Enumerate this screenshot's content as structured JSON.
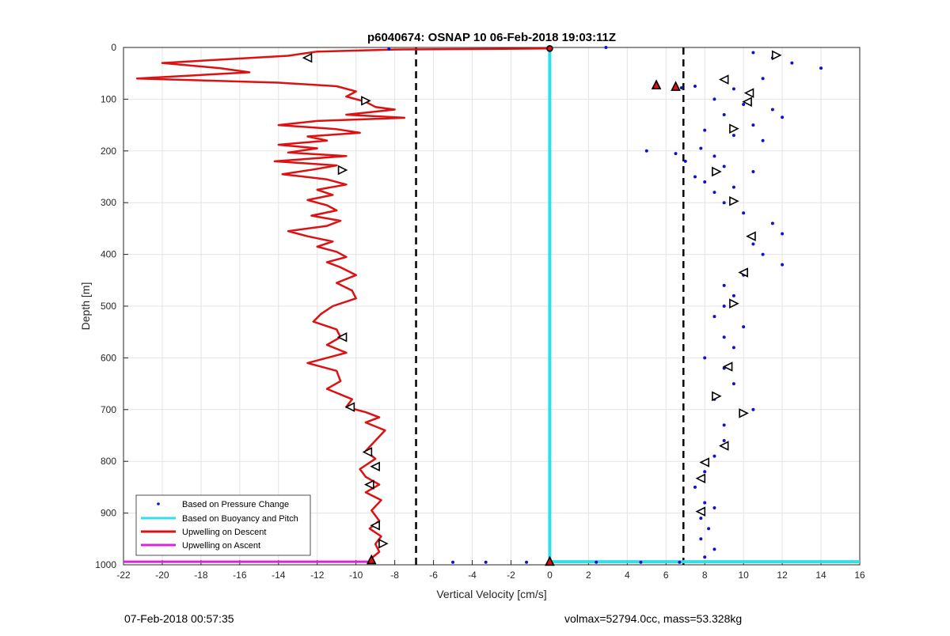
{
  "footer": {
    "left": "07-Feb-2018 00:57:35",
    "right": "volmax=52794.0cc, mass=53.328kg"
  },
  "colors": {
    "descent": "#dd1111",
    "buoyancy": "#33dfe6",
    "pressure": "#1010d0",
    "ascent": "#dd22dd",
    "threshold": "#000000",
    "grid": "#e3e3e3"
  },
  "chart_data": {
    "type": "scatter",
    "title": "p6040674: OSNAP 10 06-Feb-2018 19:03:11Z",
    "xlabel": "Vertical Velocity [cm/s]",
    "ylabel": "Depth [m]",
    "xlim": [
      -22,
      16
    ],
    "ylim": [
      0,
      1000
    ],
    "y_reversed": true,
    "grid": true,
    "legend_placement": "bottom-left",
    "xticks": [
      -22,
      -20,
      -18,
      -16,
      -14,
      -12,
      -10,
      -8,
      -6,
      -4,
      -2,
      0,
      2,
      4,
      6,
      8,
      10,
      12,
      14,
      16
    ],
    "yticks": [
      0,
      100,
      200,
      300,
      400,
      500,
      600,
      700,
      800,
      900,
      1000
    ],
    "thresholds": [
      -6.9,
      6.9
    ],
    "legend": [
      "Based on Pressure Change",
      "Based on Buoyancy and Pitch",
      "Upwelling on Descent",
      "Upwelling on Ascent"
    ],
    "series": [
      {
        "name": "Based on Pressure Change",
        "kind": "points",
        "points": [
          [
            2.9,
            0
          ],
          [
            10.5,
            10
          ],
          [
            11.5,
            20
          ],
          [
            12.5,
            30
          ],
          [
            14.0,
            40
          ],
          [
            11.0,
            60
          ],
          [
            9.5,
            80
          ],
          [
            7.5,
            75
          ],
          [
            6.8,
            78
          ],
          [
            8.5,
            100
          ],
          [
            10.0,
            110
          ],
          [
            11.5,
            120
          ],
          [
            9.0,
            130
          ],
          [
            12.0,
            135
          ],
          [
            10.5,
            150
          ],
          [
            8.0,
            160
          ],
          [
            9.5,
            170
          ],
          [
            11.0,
            180
          ],
          [
            7.8,
            195
          ],
          [
            5.0,
            200
          ],
          [
            6.5,
            205
          ],
          [
            8.5,
            210
          ],
          [
            7.0,
            220
          ],
          [
            9.0,
            230
          ],
          [
            10.5,
            240
          ],
          [
            7.5,
            250
          ],
          [
            8.0,
            260
          ],
          [
            9.5,
            270
          ],
          [
            8.5,
            280
          ],
          [
            9.0,
            300
          ],
          [
            10.0,
            320
          ],
          [
            11.5,
            340
          ],
          [
            12.0,
            360
          ],
          [
            10.5,
            380
          ],
          [
            11.0,
            400
          ],
          [
            12.0,
            420
          ],
          [
            10.0,
            440
          ],
          [
            9.0,
            460
          ],
          [
            9.5,
            480
          ],
          [
            9.0,
            500
          ],
          [
            8.5,
            520
          ],
          [
            10.0,
            540
          ],
          [
            9.0,
            560
          ],
          [
            9.5,
            580
          ],
          [
            8.0,
            600
          ],
          [
            9.0,
            620
          ],
          [
            9.5,
            650
          ],
          [
            8.5,
            680
          ],
          [
            10.5,
            700
          ],
          [
            9.0,
            730
          ],
          [
            9.0,
            760
          ],
          [
            8.5,
            790
          ],
          [
            8.0,
            820
          ],
          [
            7.5,
            850
          ],
          [
            8.0,
            880
          ],
          [
            8.5,
            890
          ],
          [
            7.8,
            910
          ],
          [
            8.2,
            930
          ],
          [
            7.8,
            950
          ],
          [
            8.5,
            970
          ],
          [
            8.0,
            985
          ],
          [
            -8.3,
            3
          ],
          [
            2.4,
            995
          ],
          [
            4.7,
            995
          ],
          [
            6.7,
            995
          ],
          [
            -3.3,
            995
          ],
          [
            -5.0,
            995
          ],
          [
            -1.2,
            995
          ]
        ]
      },
      {
        "name": "Based on Buoyancy and Pitch",
        "kind": "line",
        "points": [
          [
            0,
            0
          ],
          [
            0,
            994
          ],
          [
            16,
            994
          ]
        ]
      },
      {
        "name": "Upwelling on Descent",
        "kind": "line",
        "points": [
          [
            0,
            2
          ],
          [
            -8,
            4
          ],
          [
            -12,
            8
          ],
          [
            -13.5,
            16
          ],
          [
            -20,
            30
          ],
          [
            -17,
            40
          ],
          [
            -15.5,
            48
          ],
          [
            -21.3,
            60
          ],
          [
            -14,
            68
          ],
          [
            -11,
            75
          ],
          [
            -10,
            85
          ],
          [
            -10.5,
            95
          ],
          [
            -9.5,
            105
          ],
          [
            -9.0,
            115
          ],
          [
            -8.0,
            120
          ],
          [
            -10.5,
            130
          ],
          [
            -7.5,
            136
          ],
          [
            -12,
            142
          ],
          [
            -14,
            150
          ],
          [
            -11,
            158
          ],
          [
            -9.8,
            165
          ],
          [
            -12.5,
            172
          ],
          [
            -11.5,
            180
          ],
          [
            -14,
            188
          ],
          [
            -12,
            195
          ],
          [
            -13.5,
            203
          ],
          [
            -10.5,
            210
          ],
          [
            -14.2,
            220
          ],
          [
            -11.0,
            228
          ],
          [
            -12.2,
            236
          ],
          [
            -13.8,
            245
          ],
          [
            -11.5,
            255
          ],
          [
            -10.5,
            265
          ],
          [
            -12.0,
            275
          ],
          [
            -11.2,
            285
          ],
          [
            -12.5,
            295
          ],
          [
            -11.5,
            305
          ],
          [
            -11.0,
            315
          ],
          [
            -12.3,
            325
          ],
          [
            -10.8,
            335
          ],
          [
            -11.5,
            345
          ],
          [
            -13.5,
            355
          ],
          [
            -12.5,
            365
          ],
          [
            -11.2,
            375
          ],
          [
            -12.0,
            385
          ],
          [
            -11.0,
            395
          ],
          [
            -10.5,
            405
          ],
          [
            -11.5,
            415
          ],
          [
            -10.8,
            425
          ],
          [
            -10.0,
            440
          ],
          [
            -11.0,
            455
          ],
          [
            -10.2,
            470
          ],
          [
            -10.0,
            485
          ],
          [
            -11.2,
            500
          ],
          [
            -11.8,
            515
          ],
          [
            -12.2,
            530
          ],
          [
            -11.0,
            545
          ],
          [
            -10.8,
            560
          ],
          [
            -11.5,
            575
          ],
          [
            -10.5,
            590
          ],
          [
            -12.5,
            610
          ],
          [
            -11.0,
            625
          ],
          [
            -10.8,
            645
          ],
          [
            -11.5,
            660
          ],
          [
            -10.2,
            680
          ],
          [
            -10.5,
            695
          ],
          [
            -9.5,
            705
          ],
          [
            -8.8,
            715
          ],
          [
            -9.5,
            725
          ],
          [
            -8.5,
            740
          ],
          [
            -9.0,
            760
          ],
          [
            -9.5,
            780
          ],
          [
            -9.0,
            795
          ],
          [
            -9.8,
            815
          ],
          [
            -9.5,
            830
          ],
          [
            -8.8,
            845
          ],
          [
            -9.5,
            860
          ],
          [
            -8.7,
            875
          ],
          [
            -9.2,
            895
          ],
          [
            -8.8,
            915
          ],
          [
            -9.3,
            930
          ],
          [
            -8.7,
            945
          ],
          [
            -9.0,
            960
          ],
          [
            -8.8,
            975
          ],
          [
            -9.3,
            990
          ],
          [
            -9.3,
            994
          ]
        ]
      },
      {
        "name": "Upwelling on Ascent",
        "kind": "line",
        "points": [
          [
            -22,
            994
          ],
          [
            -9.3,
            994
          ]
        ]
      }
    ],
    "markers": [
      {
        "x": 0,
        "y": 2,
        "shape": "circle",
        "fill": "#dd1111"
      },
      {
        "x": -12.5,
        "y": 20,
        "shape": "tri-left",
        "fill": "none"
      },
      {
        "x": -9.5,
        "y": 103,
        "shape": "tri-right",
        "fill": "none"
      },
      {
        "x": -10.7,
        "y": 237,
        "shape": "tri-right",
        "fill": "none"
      },
      {
        "x": -10.7,
        "y": 560,
        "shape": "tri-left",
        "fill": "none"
      },
      {
        "x": -10.3,
        "y": 695,
        "shape": "tri-left",
        "fill": "none"
      },
      {
        "x": -9.4,
        "y": 782,
        "shape": "tri-left",
        "fill": "none"
      },
      {
        "x": -9.0,
        "y": 810,
        "shape": "tri-left",
        "fill": "none"
      },
      {
        "x": -9.3,
        "y": 845,
        "shape": "tri-left",
        "fill": "none"
      },
      {
        "x": -9.0,
        "y": 924,
        "shape": "tri-left",
        "fill": "none"
      },
      {
        "x": -8.6,
        "y": 959,
        "shape": "tri-right",
        "fill": "none"
      },
      {
        "x": -9.2,
        "y": 990,
        "shape": "tri-up",
        "fill": "#dd1111"
      },
      {
        "x": 0,
        "y": 993,
        "shape": "tri-up",
        "fill": "#dd1111"
      },
      {
        "x": 11.7,
        "y": 15,
        "shape": "tri-right",
        "fill": "none"
      },
      {
        "x": 9.0,
        "y": 62,
        "shape": "tri-left",
        "fill": "none"
      },
      {
        "x": 5.5,
        "y": 72,
        "shape": "tri-up",
        "fill": "#dd1111"
      },
      {
        "x": 6.5,
        "y": 75,
        "shape": "tri-up",
        "fill": "#dd1111"
      },
      {
        "x": 10.3,
        "y": 88,
        "shape": "tri-left",
        "fill": "none"
      },
      {
        "x": 10.2,
        "y": 105,
        "shape": "tri-left",
        "fill": "none"
      },
      {
        "x": 9.5,
        "y": 157,
        "shape": "tri-right",
        "fill": "none"
      },
      {
        "x": 8.6,
        "y": 240,
        "shape": "tri-right",
        "fill": "none"
      },
      {
        "x": 9.5,
        "y": 297,
        "shape": "tri-right",
        "fill": "none"
      },
      {
        "x": 10.4,
        "y": 365,
        "shape": "tri-left",
        "fill": "none"
      },
      {
        "x": 10.0,
        "y": 435,
        "shape": "tri-left",
        "fill": "none"
      },
      {
        "x": 9.5,
        "y": 495,
        "shape": "tri-right",
        "fill": "none"
      },
      {
        "x": 9.2,
        "y": 617,
        "shape": "tri-left",
        "fill": "none"
      },
      {
        "x": 8.6,
        "y": 674,
        "shape": "tri-right",
        "fill": "none"
      },
      {
        "x": 10.0,
        "y": 707,
        "shape": "tri-right",
        "fill": "none"
      },
      {
        "x": 9.0,
        "y": 770,
        "shape": "tri-left",
        "fill": "none"
      },
      {
        "x": 8.0,
        "y": 802,
        "shape": "tri-left",
        "fill": "none"
      },
      {
        "x": 7.8,
        "y": 833,
        "shape": "tri-left",
        "fill": "none"
      },
      {
        "x": 7.8,
        "y": 897,
        "shape": "tri-left",
        "fill": "none"
      }
    ]
  }
}
